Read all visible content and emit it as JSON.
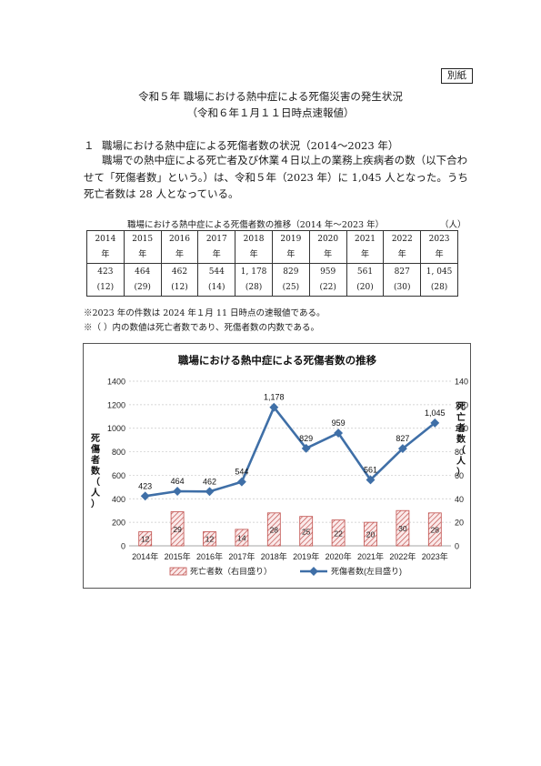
{
  "stamp": "別紙",
  "doc": {
    "title": "令和５年 職場における熱中症による死傷災害の発生状況",
    "subtitle": "（令和６年１月１１日時点速報値）"
  },
  "section": {
    "number": "１",
    "heading": "職場における熱中症による死傷者数の状況（2014～2023 年）",
    "paragraph": "職場での熱中症による死亡者及び休業４日以上の業務上疾病者の数（以下合わせて「死傷者数」という。）は、令和５年（2023 年）に 1,045 人となった。うち死亡者数は 28 人となっている。"
  },
  "table": {
    "caption": "職場における熱中症による死傷者数の推移（2014 年～2023 年）",
    "unit": "（人）",
    "years": [
      "2014",
      "2015",
      "2016",
      "2017",
      "2018",
      "2019",
      "2020",
      "2021",
      "2022",
      "2023"
    ],
    "year_suffix": "年",
    "casualties": [
      "423",
      "464",
      "462",
      "544",
      "1, 178",
      "829",
      "959",
      "561",
      "827",
      "1, 045"
    ],
    "deaths": [
      "(12)",
      "(29)",
      "(12)",
      "(14)",
      "(28)",
      "(25)",
      "(22)",
      "(20)",
      "(30)",
      "(28)"
    ]
  },
  "notes": [
    "※2023 年の件数は 2024 年１月 11 日時点の速報値である。",
    "※（ ）内の数値は死亡者数であり、死傷者数の内数である。"
  ],
  "chart_data": {
    "type": "bar",
    "title": "職場における熱中症による死傷者数の推移",
    "categories": [
      "2014年",
      "2015年",
      "2016年",
      "2017年",
      "2018年",
      "2019年",
      "2020年",
      "2021年",
      "2022年",
      "2023年"
    ],
    "series": [
      {
        "name": "死亡者数（右目盛り）",
        "type": "bar",
        "axis": "right",
        "values": [
          12,
          29,
          12,
          14,
          28,
          25,
          22,
          20,
          30,
          28
        ],
        "labels": [
          "12",
          "29",
          "12",
          "14",
          "28",
          "25",
          "22",
          "20",
          "30",
          "28"
        ],
        "color": "#c0504d"
      },
      {
        "name": "死傷者数(左目盛り)",
        "type": "line",
        "axis": "left",
        "values": [
          423,
          464,
          462,
          544,
          1178,
          829,
          959,
          561,
          827,
          1045
        ],
        "labels": [
          "423",
          "464",
          "462",
          "544",
          "1,178",
          "829",
          "959",
          "561",
          "827",
          "1,045"
        ],
        "color": "#3f6fa7"
      }
    ],
    "ylabel_left": "死傷者数（人）",
    "ylabel_right": "死亡者数（人）",
    "ylim_left": [
      0,
      1400
    ],
    "ylim_right": [
      0,
      140
    ],
    "yticks_left": [
      "0",
      "200",
      "400",
      "600",
      "800",
      "1000",
      "1200",
      "1400"
    ],
    "yticks_right": [
      "0",
      "20",
      "40",
      "60",
      "80",
      "100",
      "120",
      "140"
    ],
    "grid": true,
    "legend_position": "bottom"
  }
}
